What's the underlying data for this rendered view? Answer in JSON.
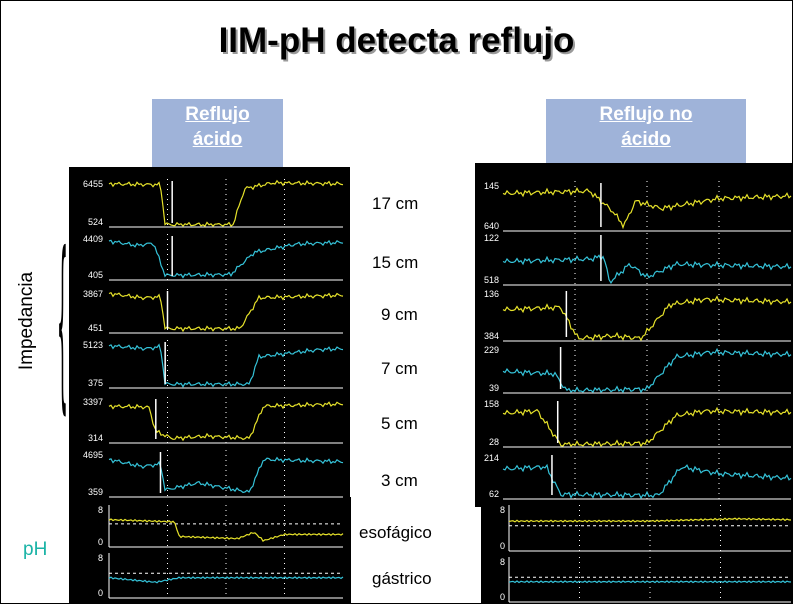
{
  "title": "IIM-pH detecta reflujo",
  "left_panel": {
    "header_line1": "Reflujo",
    "header_line2": "ácido",
    "impedance_channels": [
      {
        "max": "6455",
        "min": "524",
        "color": "#e6e22a"
      },
      {
        "max": "4409",
        "min": "405",
        "color": "#35c3d9"
      },
      {
        "max": "3867",
        "min": "451",
        "color": "#e6e22a"
      },
      {
        "max": "5123",
        "min": "375",
        "color": "#35c3d9"
      },
      {
        "max": "3397",
        "min": "314",
        "color": "#e6e22a"
      },
      {
        "max": "4695",
        "min": "359",
        "color": "#35c3d9"
      }
    ],
    "ph_channels": [
      {
        "max": "8",
        "min": "0",
        "color": "#e6e22a"
      },
      {
        "max": "8",
        "min": "0",
        "color": "#35c3d9"
      }
    ]
  },
  "right_panel": {
    "header_line1": "Reflujo no",
    "header_line2": "ácido",
    "impedance_channels": [
      {
        "max": "145",
        "min": "640",
        "color": "#e6e22a"
      },
      {
        "max": "122",
        "min": "518",
        "color": "#35c3d9"
      },
      {
        "max": "136",
        "min": "384",
        "color": "#e6e22a"
      },
      {
        "max": "229",
        "min": "39",
        "color": "#35c3d9"
      },
      {
        "max": "158",
        "min": "28",
        "color": "#e6e22a"
      },
      {
        "max": "214",
        "min": "62",
        "color": "#35c3d9"
      }
    ],
    "ph_channels": [
      {
        "max": "8",
        "min": "0",
        "color": "#e6e22a"
      },
      {
        "max": "8",
        "min": "0",
        "color": "#35c3d9"
      }
    ]
  },
  "channel_labels": [
    "17 cm",
    "15 cm",
    "9 cm",
    "7 cm",
    "5 cm",
    "3 cm"
  ],
  "ph_labels": [
    "esofágico",
    "gástrico"
  ],
  "impedance_label": "Impedancia",
  "ph_label": "pH"
}
